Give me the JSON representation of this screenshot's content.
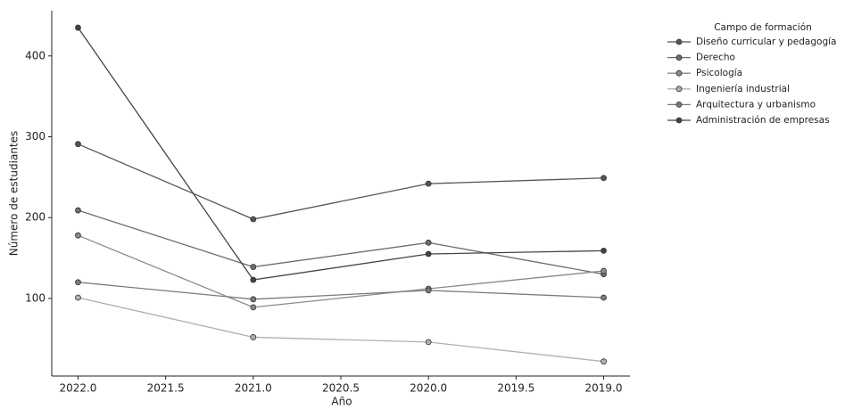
{
  "chart_data": {
    "type": "line",
    "x_label": "Año",
    "y_label": "Número de estudiantes",
    "legend_title": "Campo de formación",
    "legend_position": "outside upper right",
    "x": [
      2022,
      2021,
      2020,
      2019
    ],
    "series": [
      {
        "name": "Diseño curricular y pedagogía",
        "color": "#555555",
        "values": [
          291,
          198,
          242,
          249
        ]
      },
      {
        "name": "Derecho",
        "color": "#6e6e6e",
        "values": [
          209,
          139,
          169,
          130
        ]
      },
      {
        "name": "Psicología",
        "color": "#8a8a8a",
        "values": [
          178,
          89,
          112,
          134
        ]
      },
      {
        "name": "Ingeniería industrial",
        "color": "#b0b0b0",
        "values": [
          101,
          52,
          46,
          22
        ]
      },
      {
        "name": "Arquitectura y urbanismo",
        "color": "#7a7a7a",
        "values": [
          120,
          99,
          110,
          101
        ]
      },
      {
        "name": "Administración de empresas",
        "color": "#444444",
        "values": [
          435,
          123,
          155,
          159
        ]
      }
    ],
    "xlim": [
      2022.15,
      2018.85
    ],
    "xticks": [
      {
        "value": 2022,
        "label": "2022.0"
      },
      {
        "value": 2021.5,
        "label": "2021.5"
      },
      {
        "value": 2021,
        "label": "2021.0"
      },
      {
        "value": 2020.5,
        "label": "2020.5"
      },
      {
        "value": 2020,
        "label": "2020.0"
      },
      {
        "value": 2019.5,
        "label": "2019.5"
      },
      {
        "value": 2019,
        "label": "2019.0"
      }
    ],
    "ylim": [
      4,
      456
    ],
    "yticks": [
      100,
      200,
      300,
      400
    ],
    "grid": false
  }
}
